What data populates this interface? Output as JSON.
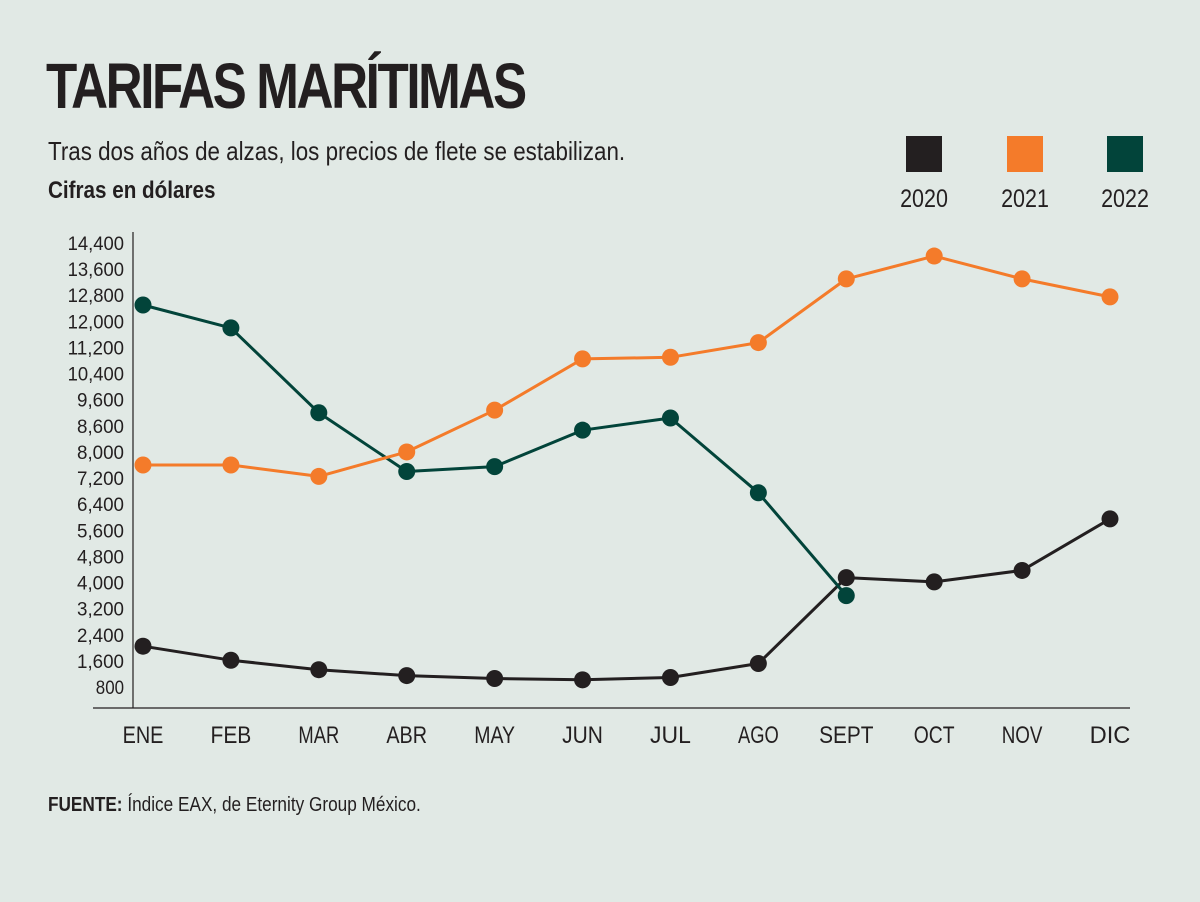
{
  "chart_data": {
    "type": "line",
    "title": "TARIFAS MARÍTIMAS",
    "subtitle": "Tras dos años de alzas, los precios de flete se estabilizan.",
    "ylabel": "Cifras en dólares",
    "xlabel": "",
    "categories": [
      "ENE",
      "FEB",
      "MAR",
      "ABR",
      "MAY",
      "JUN",
      "JUL",
      "AGO",
      "SEPT",
      "OCT",
      "NOV",
      "DIC"
    ],
    "yticks": [
      800,
      1600,
      2400,
      3200,
      4000,
      4800,
      5600,
      6400,
      7200,
      8000,
      8600,
      9600,
      10400,
      11200,
      12000,
      12800,
      13600,
      14400
    ],
    "ytick_labels": [
      "800",
      "1,600",
      "2,400",
      "3,200",
      "4,000",
      "4,800",
      "5,600",
      "6,400",
      "7,200",
      "8,000",
      "8,600",
      "9,600",
      "10,400",
      "11,200",
      "12,000",
      "12,800",
      "13,600",
      "14,400"
    ],
    "grid": false,
    "legend_position": "top-right",
    "series": [
      {
        "name": "2020",
        "color": "#231f20",
        "values": [
          2050,
          1620,
          1330,
          1150,
          1060,
          1020,
          1090,
          1520,
          4150,
          4020,
          4370,
          5950
        ]
      },
      {
        "name": "2021",
        "color": "#f47b2a",
        "values": [
          7600,
          7600,
          7250,
          8000,
          9200,
          10850,
          10900,
          11350,
          13300,
          14000,
          13300,
          12750
        ]
      },
      {
        "name": "2022",
        "color": "#02443a",
        "values": [
          12500,
          11800,
          9100,
          7400,
          7550,
          8500,
          8900,
          6750,
          3600,
          null,
          null,
          null
        ]
      }
    ]
  },
  "source": {
    "label": "FUENTE:",
    "text": "Índice EAX, de Eternity Group México."
  }
}
